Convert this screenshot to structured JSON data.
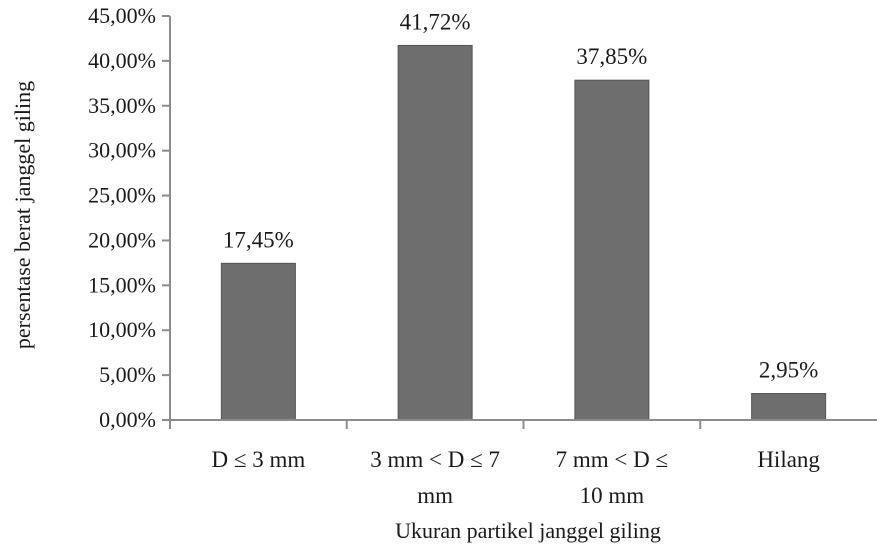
{
  "chart_data": {
    "type": "bar",
    "title": "",
    "xlabel": "Ukuran partikel janggel giling",
    "ylabel": "persentase berat janggel giling",
    "categories": [
      [
        "D ≤ 3 mm"
      ],
      [
        "3 mm < D ≤ 7",
        "mm"
      ],
      [
        "7 mm < D  ≤",
        "10 mm"
      ],
      [
        "Hilang"
      ]
    ],
    "values": [
      17.45,
      41.72,
      37.85,
      2.95
    ],
    "data_labels": [
      "17,45%",
      "41,72%",
      "37,85%",
      "2,95%"
    ],
    "ylim": [
      0,
      45
    ],
    "yticks": [
      0,
      5,
      10,
      15,
      20,
      25,
      30,
      35,
      40,
      45
    ],
    "ytick_labels": [
      "0,00%",
      "5,00%",
      "10,00%",
      "15,00%",
      "20,00%",
      "25,00%",
      "30,00%",
      "35,00%",
      "40,00%",
      "45,00%"
    ],
    "grid": false,
    "legend": "none",
    "bar_color": "#6e6e6e",
    "axis_color": "#8c8c8c"
  }
}
